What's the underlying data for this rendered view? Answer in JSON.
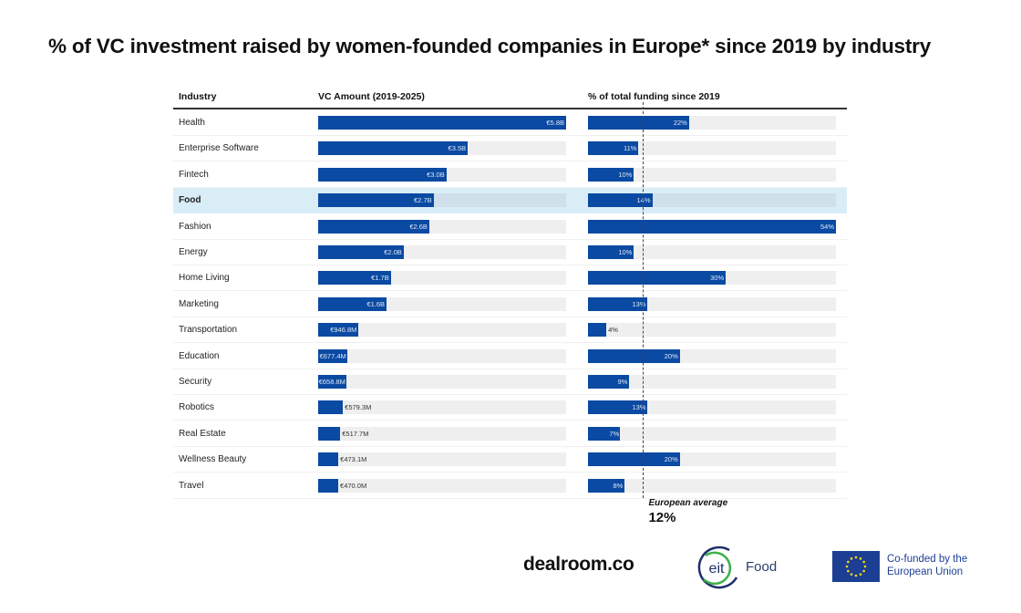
{
  "title": "% of VC investment raised by women-founded companies in Europe* since 2019 by industry",
  "chart_data": {
    "type": "bar",
    "title": "% of VC investment raised by women-founded companies in Europe* since 2019 by industry",
    "columns": {
      "industry": "Industry",
      "vc_amount": "VC Amount (2019-2025)",
      "pct_total": "% of total funding since 2019"
    },
    "categories": [
      "Health",
      "Enterprise Software",
      "Fintech",
      "Food",
      "Fashion",
      "Energy",
      "Home Living",
      "Marketing",
      "Transportation",
      "Education",
      "Security",
      "Robotics",
      "Real Estate",
      "Wellness Beauty",
      "Travel"
    ],
    "highlighted_category": "Food",
    "series": [
      {
        "name": "VC Amount (2019-2025)",
        "unit": "EUR millions",
        "values": [
          5800,
          3500,
          3000,
          2700,
          2600,
          2000,
          1700,
          1600,
          946.8,
          677.4,
          658.8,
          579.3,
          517.7,
          473.1,
          470.0
        ],
        "labels": [
          "€5.8B",
          "€3.5B",
          "€3.0B",
          "€2.7B",
          "€2.6B",
          "€2.0B",
          "€1.7B",
          "€1.6B",
          "€946.8M",
          "€677.4M",
          "€658.8M",
          "€579.3M",
          "€517.7M",
          "€473.1M",
          "€470.0M"
        ],
        "range": [
          0,
          5800
        ]
      },
      {
        "name": "% of total funding since 2019",
        "unit": "percent",
        "values": [
          22,
          11,
          10,
          14,
          54,
          10,
          30,
          13,
          4,
          20,
          9,
          13,
          7,
          20,
          8
        ],
        "labels": [
          "22%",
          "11%",
          "10%",
          "14%",
          "54%",
          "10%",
          "30%",
          "13%",
          "4%",
          "20%",
          "9%",
          "13%",
          "7%",
          "20%",
          "8%"
        ],
        "range": [
          0,
          54
        ]
      }
    ],
    "reference_line": {
      "series": "% of total funding since 2019",
      "value": 12,
      "label": "European average",
      "value_label": "12%",
      "style": "dashed"
    },
    "colors": {
      "bar": "#0b4aa2",
      "track": "#efefef",
      "highlight_row": "#d9edf7"
    },
    "legend": "none",
    "grid": false
  },
  "footer": {
    "dealroom": "dealroom.co",
    "eit_mark": "eit",
    "eit_food": "Food",
    "eu_line1": "Co-funded by the",
    "eu_line2": "European Union"
  }
}
